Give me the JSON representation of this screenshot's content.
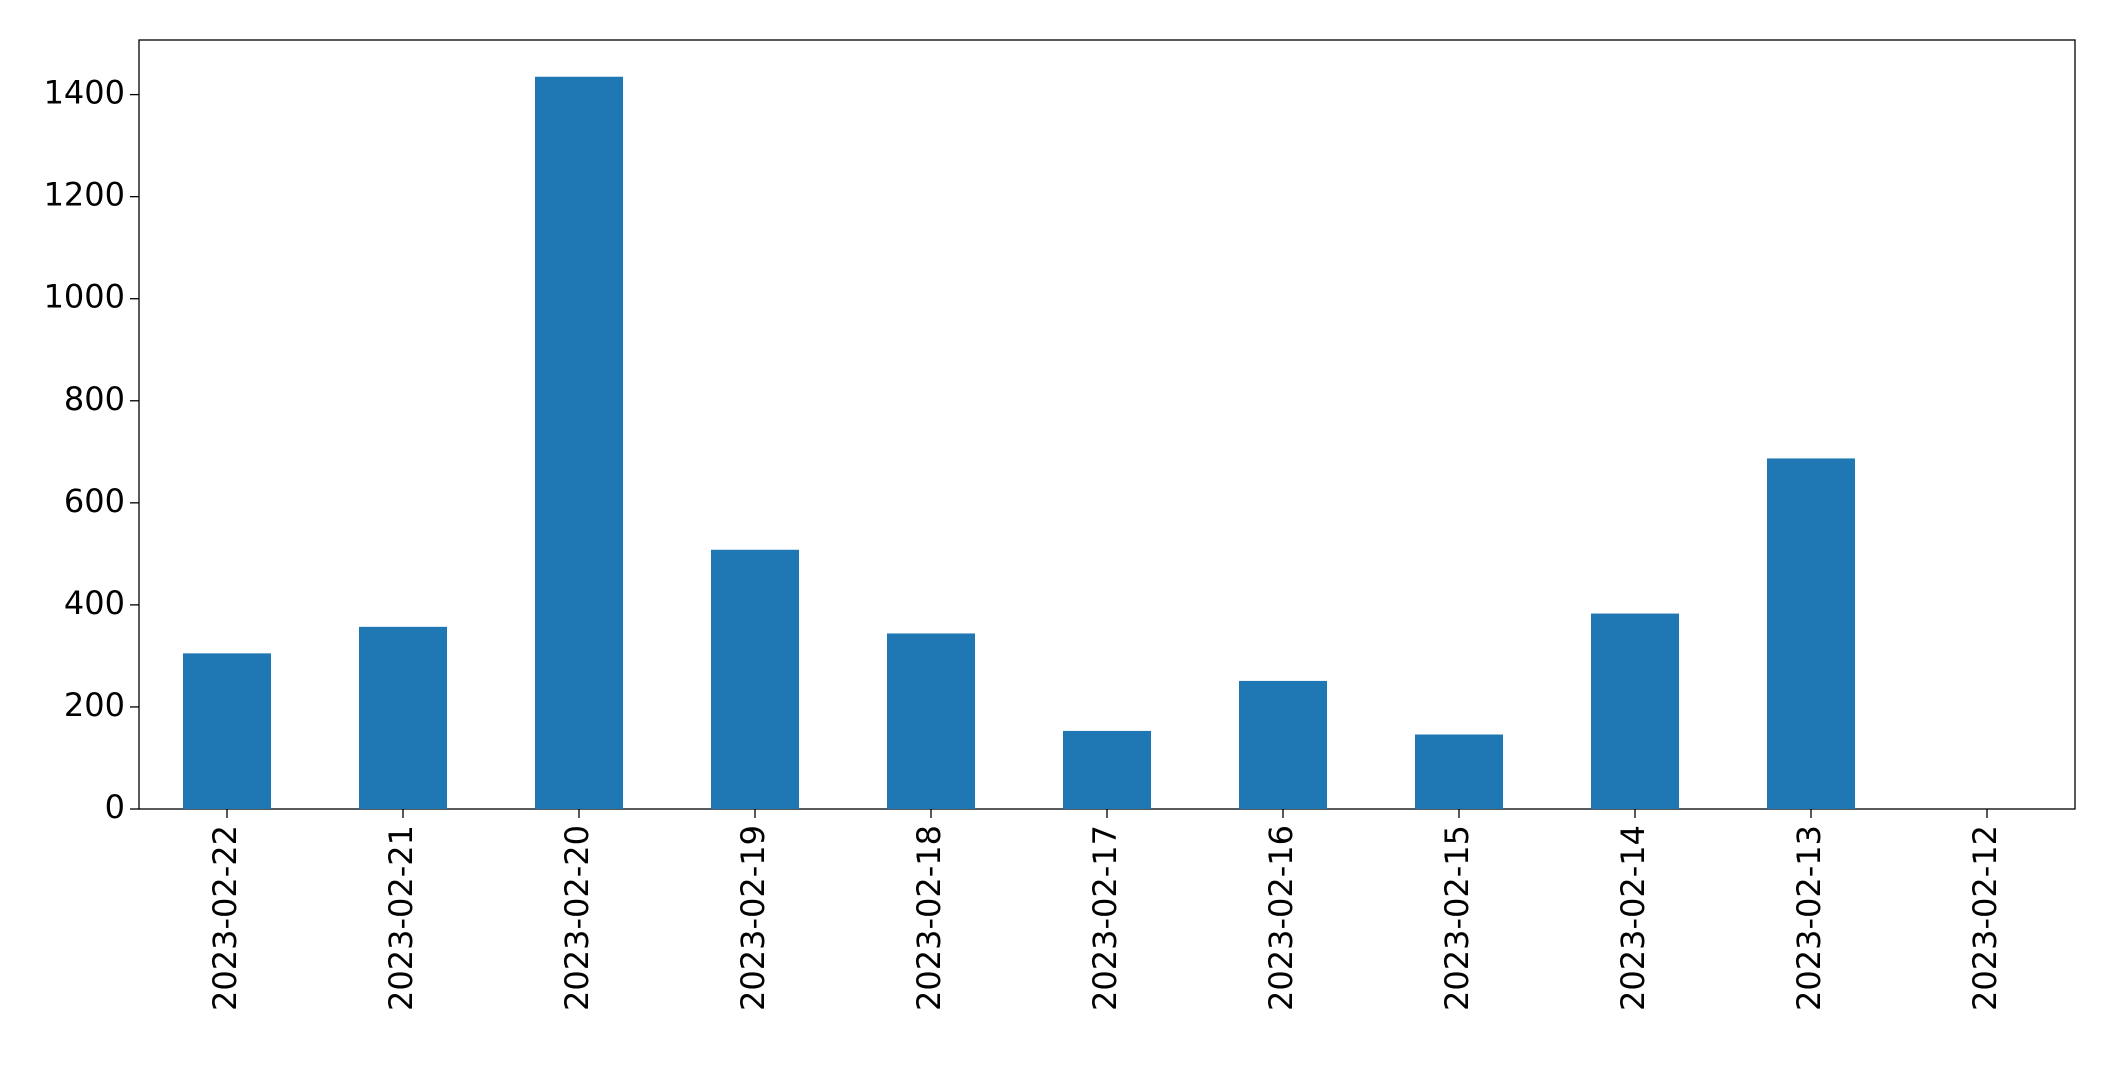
{
  "chart_data": {
    "type": "bar",
    "categories": [
      "2023-02-22",
      "2023-02-21",
      "2023-02-20",
      "2023-02-19",
      "2023-02-18",
      "2023-02-17",
      "2023-02-16",
      "2023-02-15",
      "2023-02-14",
      "2023-02-13",
      "2023-02-12"
    ],
    "values": [
      305,
      357,
      1435,
      508,
      344,
      153,
      251,
      146,
      383,
      687,
      0
    ],
    "color": "#1f77b4",
    "ylim": [
      0,
      1507
    ],
    "yticks": [
      0,
      200,
      400,
      600,
      800,
      1000,
      1200,
      1400
    ],
    "grid": false
  }
}
